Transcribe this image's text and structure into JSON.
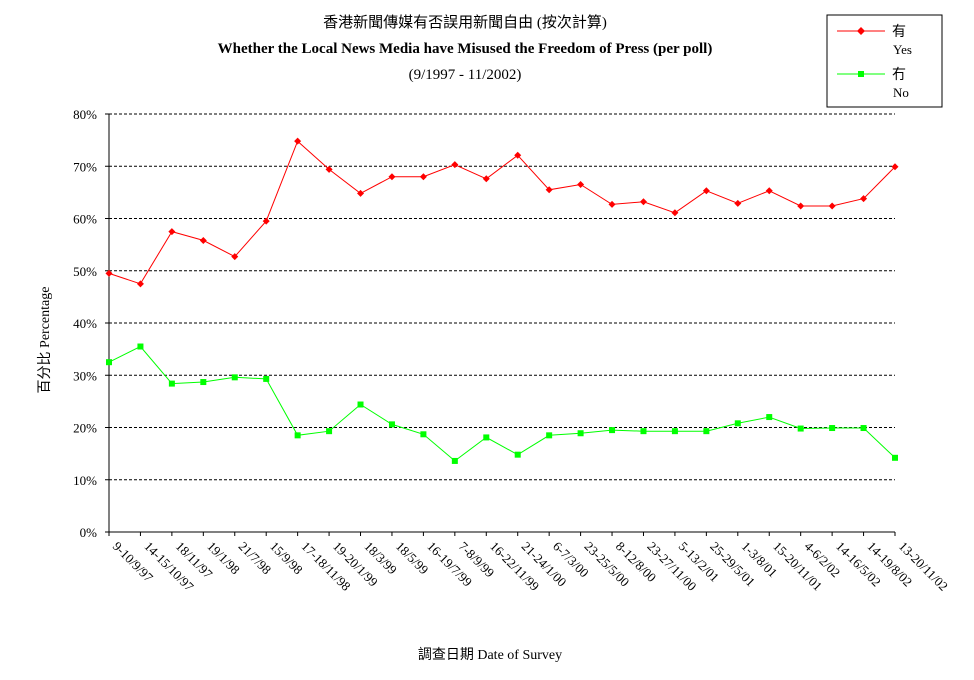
{
  "chart_data": {
    "type": "line",
    "title": "香港新聞傳媒有否誤用新聞自由 (按次計算)",
    "subtitle": "Whether the Local News Media have Misused the Freedom of Press (per poll)",
    "date_range": "(9/1997 - 11/2002)",
    "xlabel": "調查日期 Date of Survey",
    "ylabel": "百分比 Percentage",
    "ylim": [
      0,
      80
    ],
    "yticks": [
      "0%",
      "10%",
      "20%",
      "30%",
      "40%",
      "50%",
      "60%",
      "70%",
      "80%"
    ],
    "grid": true,
    "legend_position": "top-right",
    "categories": [
      "9-10/9/97",
      "14-15/10/97",
      "18/11/97",
      "19/1/98",
      "21/7/98",
      "15/9/98",
      "17-18/11/98",
      "19-20/1/99",
      "18/3/99",
      "18/5/99",
      "16-19/7/99",
      "7-8/9/99",
      "16-22/11/99",
      "21-24/1/00",
      "6-7/3/00",
      "23-25/5/00",
      "8-12/8/00",
      "23-27/11/00",
      "5-13/2/01",
      "25-29/5/01",
      "1-3/8/01",
      "15-20/11/01",
      "4-6/2/02",
      "14-16/5/02",
      "14-19/8/02",
      "13-20/11/02"
    ],
    "series": [
      {
        "name": "有",
        "name_en": "Yes",
        "color": "#ff0000",
        "marker": "diamond",
        "values": [
          49.5,
          47.5,
          57.5,
          55.8,
          52.7,
          59.5,
          74.8,
          69.4,
          64.8,
          68.0,
          68.0,
          70.3,
          67.6,
          72.1,
          65.5,
          66.5,
          62.7,
          63.2,
          61.1,
          65.3,
          62.9,
          65.3,
          62.4,
          62.4,
          63.8,
          69.9
        ]
      },
      {
        "name": "冇",
        "name_en": "No",
        "color": "#00ff00",
        "marker": "square",
        "values": [
          32.5,
          35.5,
          28.4,
          28.7,
          29.6,
          29.3,
          18.5,
          19.3,
          24.4,
          20.6,
          18.7,
          13.6,
          18.1,
          14.8,
          18.5,
          18.9,
          19.5,
          19.3,
          19.3,
          19.3,
          20.8,
          22.0,
          19.8,
          19.9,
          19.9,
          14.2
        ]
      }
    ]
  }
}
